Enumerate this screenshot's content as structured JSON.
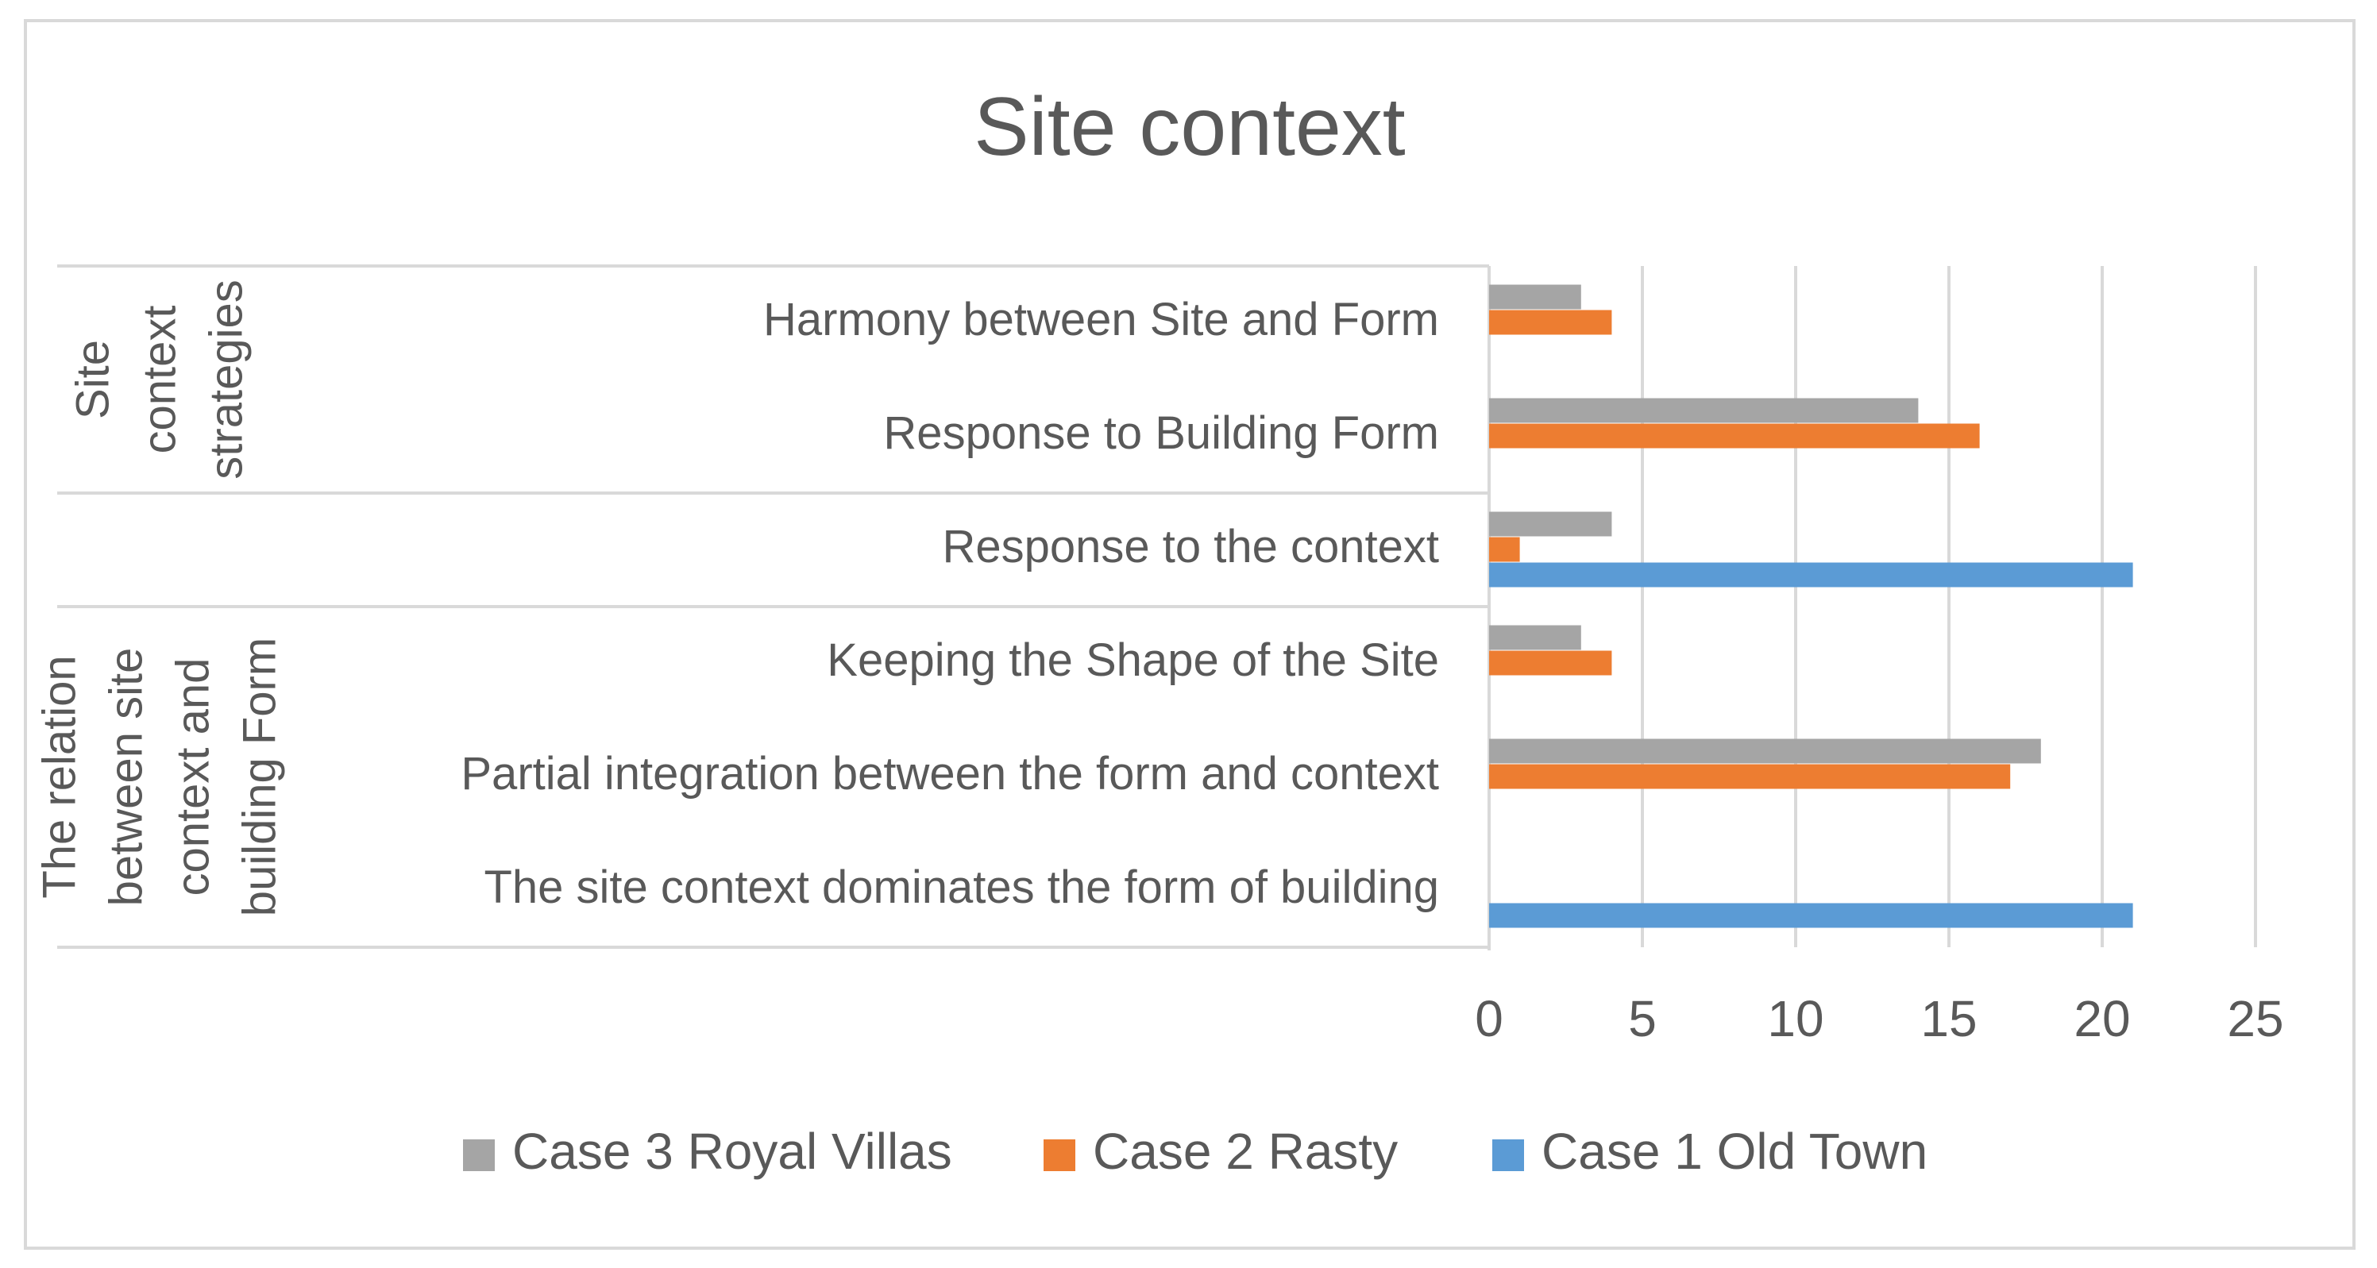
{
  "chart_data": {
    "type": "bar",
    "orientation": "horizontal",
    "title": "Site context",
    "xlim": [
      0,
      25
    ],
    "x_ticks": [
      "0",
      "5",
      "10",
      "15",
      "20",
      "25"
    ],
    "grid": true,
    "legend_position": "bottom",
    "categories": [
      "Harmony between Site and Form",
      "Response to Building Form ",
      "Response to the context",
      "Keeping the Shape of the Site",
      "Partial integration between the form and context",
      "The site context dominates the form of building"
    ],
    "groups": [
      {
        "label_lines": [
          "Site",
          "context",
          "strategies"
        ],
        "categories": [
          0,
          1
        ]
      },
      {
        "label_lines": [],
        "categories": [
          2
        ]
      },
      {
        "label_lines": [
          "The relation",
          "between site",
          "context and",
          "building Form"
        ],
        "categories": [
          3,
          4,
          5
        ]
      }
    ],
    "series": [
      {
        "name": "Case 3 Royal Villas",
        "color": "#a5a5a5",
        "values": [
          3,
          14,
          4,
          3,
          18,
          0
        ]
      },
      {
        "name": "Case 2 Rasty",
        "color": "#ed7d31",
        "values": [
          4,
          16,
          1,
          4,
          17,
          0
        ]
      },
      {
        "name": "Case 1 Old Town",
        "color": "#5b9bd5",
        "values": [
          0,
          0,
          21,
          0,
          0,
          21
        ]
      }
    ]
  }
}
